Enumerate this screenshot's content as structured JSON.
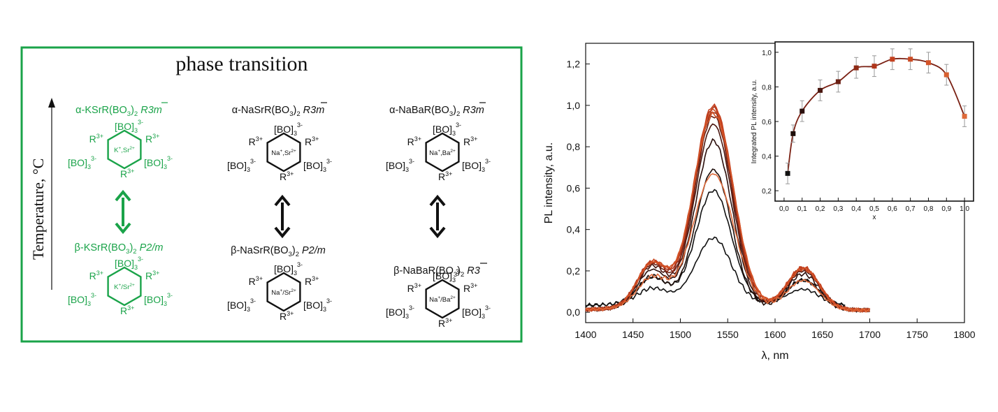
{
  "diagram": {
    "heading": "phase transition",
    "axis_label": "Temperature, °C",
    "columns": [
      {
        "color": "#1aa349",
        "alpha_formula": "α-KSrR(BO",
        "alpha_formula_tail": ")",
        "alpha_group": "R3m",
        "beta_formula": "β-KSrR(BO",
        "beta_formula_tail": ")",
        "beta_group": "P2",
        "beta_group_tail": "/m",
        "alpha_center": "K",
        "alpha_center_b": ",Sr",
        "beta_center": "K",
        "beta_center_b": "/Sr"
      },
      {
        "color": "#111111",
        "alpha_formula": "α-NaSrR(BO",
        "alpha_formula_tail": ")",
        "alpha_group": "R3m",
        "beta_formula": "β-NaSrR(BO",
        "beta_formula_tail": ")",
        "beta_group": "P2",
        "beta_group_tail": "/m",
        "alpha_center": "Na",
        "alpha_center_b": ",Sr",
        "beta_center": "Na",
        "beta_center_b": "/Sr"
      },
      {
        "color": "#111111",
        "alpha_formula": "α-NaBaR(BO",
        "alpha_formula_tail": ")",
        "alpha_group": "R3m",
        "beta_formula": "β-NaBaR(BO",
        "beta_formula_tail": ")",
        "beta_group": "R3",
        "beta_group_tail": "",
        "alpha_center": "Na",
        "alpha_center_b": ",Ba",
        "beta_center": "Na",
        "beta_center_b": "/Ba"
      }
    ],
    "ring_labels": {
      "bo": "[BO]",
      "r": "R",
      "sub3": "3",
      "sup_minus": "3-",
      "sup_r": "3+",
      "sup_plus": "+",
      "sup_2plus": "2+"
    }
  },
  "chart_data": [
    {
      "type": "line",
      "xlabel": "λ, nm",
      "ylabel": "PL intensity, a.u.",
      "xlim": [
        1400,
        1800
      ],
      "ylim": [
        -0.05,
        1.3
      ],
      "x_ticks": [
        1400,
        1450,
        1500,
        1550,
        1600,
        1650,
        1700,
        1750,
        1800
      ],
      "y_ticks": [
        0.0,
        0.2,
        0.4,
        0.6,
        0.8,
        1.0,
        1.2
      ],
      "y_tick_labels": [
        "0,0",
        "0,2",
        "0,4",
        "0,6",
        "0,8",
        "1,0",
        "1,2"
      ],
      "series_peaks": [
        0.3,
        0.53,
        0.65,
        0.79,
        0.87,
        0.91,
        0.93,
        0.95,
        0.96,
        0.94,
        0.92,
        0.63
      ],
      "series_colors": [
        "#111111",
        "#111111",
        "#1e0e0a",
        "#2b0f0c",
        "#4a1710",
        "#6a2014",
        "#8e2a16",
        "#b0351a",
        "#c4401e",
        "#cc4a22",
        "#d45428",
        "#de6a3a"
      ],
      "peak_x": 1535,
      "shoulder_x": [
        1470,
        1630
      ],
      "x_range": [
        1400,
        1700
      ]
    },
    {
      "type": "scatter",
      "xlabel": "x",
      "ylabel": "Integrated PL intensity, a.u.",
      "xlim": [
        -0.05,
        1.05
      ],
      "ylim": [
        0.14,
        1.06
      ],
      "x_ticks": [
        0.0,
        0.1,
        0.2,
        0.3,
        0.4,
        0.5,
        0.6,
        0.7,
        0.8,
        0.9,
        1.0
      ],
      "x_tick_labels": [
        "0,0",
        "0,1",
        "0,2",
        "0,3",
        "0,4",
        "0,5",
        "0,6",
        "0,7",
        "0,8",
        "0,9",
        "1,0"
      ],
      "y_ticks": [
        0.2,
        0.4,
        0.6,
        0.8,
        1.0
      ],
      "y_tick_labels": [
        "0,2",
        "0,4",
        "0,6",
        "0,8",
        "1,0"
      ],
      "x": [
        0.02,
        0.05,
        0.1,
        0.2,
        0.3,
        0.4,
        0.5,
        0.6,
        0.7,
        0.8,
        0.9,
        1.0
      ],
      "y": [
        0.3,
        0.53,
        0.66,
        0.78,
        0.83,
        0.91,
        0.92,
        0.96,
        0.96,
        0.94,
        0.87,
        0.63
      ],
      "err": [
        0.06,
        0.05,
        0.06,
        0.06,
        0.06,
        0.06,
        0.06,
        0.06,
        0.06,
        0.06,
        0.06,
        0.06
      ],
      "colors": [
        "#111111",
        "#1e0e0a",
        "#2b0f0c",
        "#4a1710",
        "#6a2014",
        "#8e2a16",
        "#b0351a",
        "#c4401e",
        "#cc4a22",
        "#d45428",
        "#d86030",
        "#de6a3a"
      ],
      "fit_color": "#7a2013"
    }
  ]
}
